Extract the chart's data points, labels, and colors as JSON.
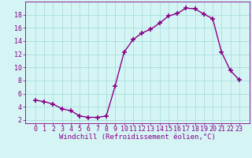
{
  "x": [
    0,
    1,
    2,
    3,
    4,
    5,
    6,
    7,
    8,
    9,
    10,
    11,
    12,
    13,
    14,
    15,
    16,
    17,
    18,
    19,
    20,
    21,
    22,
    23
  ],
  "y": [
    5.0,
    4.8,
    4.4,
    3.7,
    3.4,
    2.6,
    2.4,
    2.4,
    2.6,
    7.2,
    12.3,
    14.2,
    15.2,
    15.8,
    16.7,
    17.8,
    18.2,
    19.0,
    18.9,
    18.1,
    17.4,
    12.3,
    9.5,
    8.1
  ],
  "line_color": "#880088",
  "marker": "+",
  "marker_size": 4,
  "marker_linewidth": 1.2,
  "linewidth": 1.0,
  "background_color": "#d5f5f5",
  "grid_color": "#aadddd",
  "xlabel": "Windchill (Refroidissement éolien,°C)",
  "xlabel_color": "#880088",
  "xlabel_fontsize": 6.5,
  "tick_color": "#880088",
  "tick_fontsize": 6.0,
  "ylim": [
    1.5,
    20.0
  ],
  "yticks": [
    2,
    4,
    6,
    8,
    10,
    12,
    14,
    16,
    18
  ],
  "xticks": [
    0,
    1,
    2,
    3,
    4,
    5,
    6,
    7,
    8,
    9,
    10,
    11,
    12,
    13,
    14,
    15,
    16,
    17,
    18,
    19,
    20,
    21,
    22,
    23
  ]
}
